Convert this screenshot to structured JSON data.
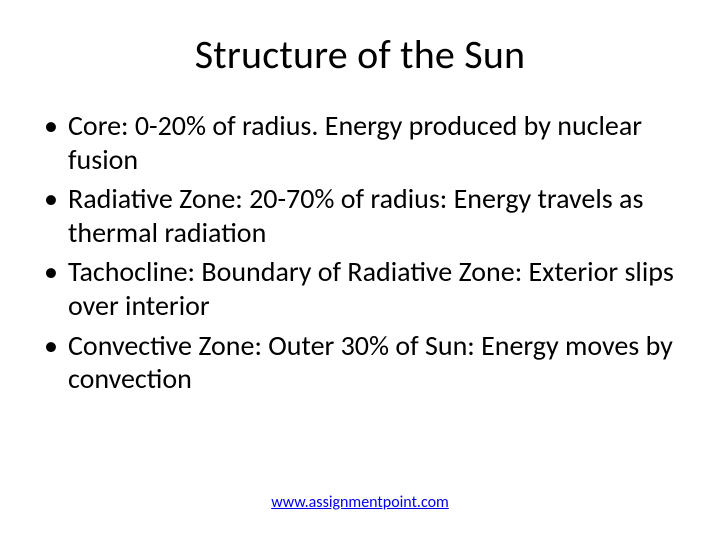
{
  "slide": {
    "title": "Structure of the Sun",
    "title_fontsize": 40,
    "body_fontsize": 28,
    "background_color": "#ffffff",
    "text_color": "#000000",
    "bullets": [
      "Core: 0-20% of radius. Energy produced by nuclear fusion",
      "Radiative Zone: 20-70% of radius: Energy travels as thermal radiation",
      "Tachocline: Boundary of Radiative Zone: Exterior slips over interior",
      "Convective Zone: Outer 30% of Sun: Energy moves by convection"
    ],
    "footer": {
      "text": "www.assignmentpoint.com",
      "link_color": "#0000ee",
      "fontsize": 16
    }
  }
}
